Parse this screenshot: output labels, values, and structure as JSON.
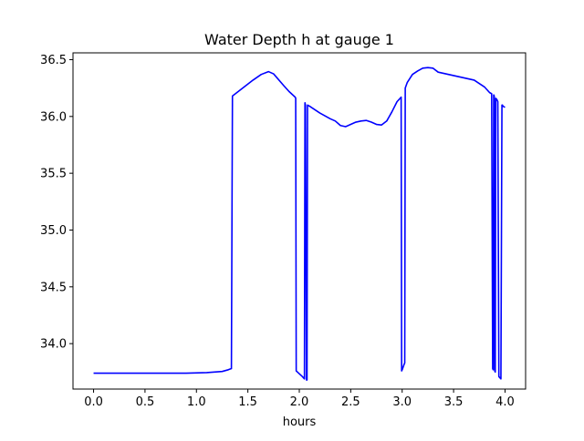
{
  "chart_data": {
    "type": "line",
    "title": "Water Depth h at gauge 1",
    "xlabel": "hours",
    "ylabel": "",
    "xlim": [
      -0.2,
      4.2
    ],
    "ylim": [
      33.6,
      36.56
    ],
    "xticks": [
      0.0,
      0.5,
      1.0,
      1.5,
      2.0,
      2.5,
      3.0,
      3.5,
      4.0
    ],
    "xtick_labels": [
      "0.0",
      "0.5",
      "1.0",
      "1.5",
      "2.0",
      "2.5",
      "3.0",
      "3.5",
      "4.0"
    ],
    "yticks": [
      34.0,
      34.5,
      35.0,
      35.5,
      36.0,
      36.5
    ],
    "ytick_labels": [
      "34.0",
      "34.5",
      "35.0",
      "35.5",
      "36.0",
      "36.5"
    ],
    "grid": false,
    "legend": "none",
    "series": [
      {
        "color": "#0000ff",
        "x": [
          0.0,
          0.5,
          0.9,
          1.1,
          1.25,
          1.31,
          1.34,
          1.35,
          1.45,
          1.55,
          1.63,
          1.7,
          1.75,
          1.85,
          1.9,
          1.96,
          1.965,
          1.97,
          2.03,
          2.05,
          2.055,
          2.06,
          2.07,
          2.075,
          2.08,
          2.1,
          2.2,
          2.3,
          2.35,
          2.4,
          2.45,
          2.5,
          2.55,
          2.6,
          2.65,
          2.7,
          2.75,
          2.8,
          2.85,
          2.9,
          2.95,
          2.99,
          2.995,
          3.0,
          3.02,
          3.025,
          3.03,
          3.05,
          3.1,
          3.15,
          3.2,
          3.25,
          3.3,
          3.35,
          3.4,
          3.5,
          3.6,
          3.7,
          3.75,
          3.8,
          3.85,
          3.87,
          3.88,
          3.885,
          3.89,
          3.895,
          3.9,
          3.905,
          3.91,
          3.92,
          3.925,
          3.93,
          3.94,
          3.95,
          3.96,
          3.97,
          3.975,
          3.98,
          4.0
        ],
        "y": [
          33.74,
          33.74,
          33.74,
          33.745,
          33.755,
          33.77,
          33.78,
          36.18,
          36.25,
          36.32,
          36.37,
          36.395,
          36.375,
          36.27,
          36.22,
          36.17,
          36.16,
          33.76,
          33.71,
          33.69,
          36.12,
          36.1,
          33.68,
          33.68,
          36.1,
          36.09,
          36.03,
          35.98,
          35.96,
          35.92,
          35.91,
          35.93,
          35.95,
          35.96,
          35.965,
          35.95,
          35.93,
          35.925,
          35.96,
          36.04,
          36.13,
          36.17,
          33.76,
          33.77,
          33.82,
          33.83,
          36.25,
          36.3,
          36.37,
          36.4,
          36.425,
          36.43,
          36.425,
          36.39,
          36.38,
          36.36,
          36.34,
          36.32,
          36.29,
          36.26,
          36.21,
          36.2,
          33.78,
          33.77,
          36.19,
          36.18,
          33.76,
          33.75,
          36.16,
          36.15,
          36.14,
          36.13,
          33.71,
          33.7,
          33.69,
          36.1,
          36.1,
          36.09,
          36.08
        ]
      }
    ]
  }
}
